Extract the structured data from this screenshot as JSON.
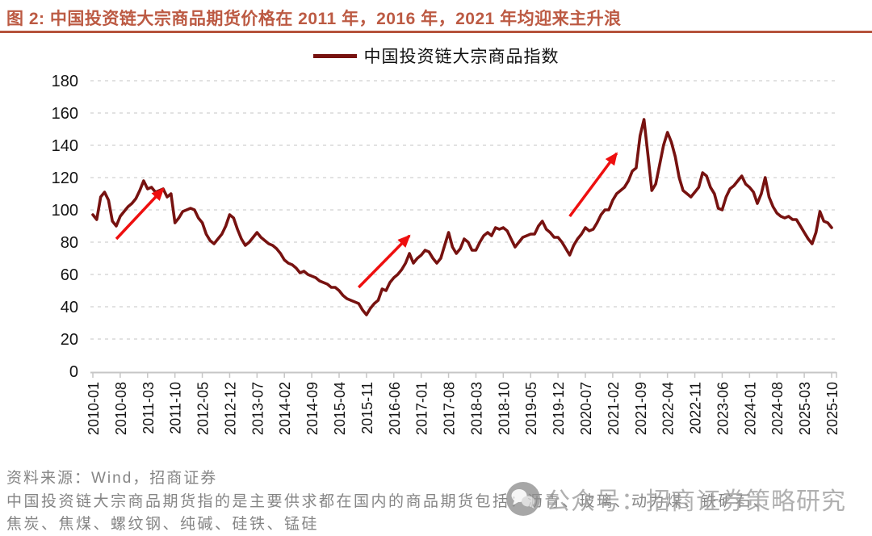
{
  "header": {
    "title": "图 2: 中国投资链大宗商品期货价格在 2011 年，2016 年，2021 年均迎来主升浪"
  },
  "legend": {
    "label": "中国投资链大宗商品指数"
  },
  "footer": {
    "source": "资料来源：Wind，招商证券",
    "note1": "中国投资链大宗商品期货指的是主要供求都在国内的商品期货包括：沥青、玻璃、动力煤、铁矿石、",
    "note2": "焦炭、焦煤、螺纹钢、纯碱、硅铁、锰硅"
  },
  "watermark": {
    "icon": "wechat-icon",
    "text": "公众号：招商证券策略研究"
  },
  "colors": {
    "accent_title": "#BC5A43",
    "accent_underline": "#B5523C",
    "series_line": "#771210",
    "arrow_red": "#EE0F0F",
    "gridline": "#D9D9D9",
    "axis": "#C6C6C6",
    "tick_text": "#141414",
    "gray_text": "#858585",
    "watermark_gray": "#9A9A9A"
  },
  "chart_data": {
    "type": "line",
    "title": "图 2: 中国投资链大宗商品期货价格在 2011 年，2016 年，2021 年均迎来主升浪",
    "xlabel": "",
    "ylabel": "",
    "start_month": "2010-01",
    "end_month": "2025-10",
    "frequency": "monthly",
    "ylim": [
      0,
      180
    ],
    "y_ticks": [
      0,
      20,
      40,
      60,
      80,
      100,
      120,
      140,
      160,
      180
    ],
    "grid": "horizontal-dashed",
    "legend_position": "top-center",
    "x_tick_labels": [
      "2010-01",
      "2010-08",
      "2011-03",
      "2011-10",
      "2012-05",
      "2012-12",
      "2013-07",
      "2014-02",
      "2014-09",
      "2015-04",
      "2015-11",
      "2016-06",
      "2017-01",
      "2017-08",
      "2018-03",
      "2018-10",
      "2019-05",
      "2019-12",
      "2020-07",
      "2021-02",
      "2021-09",
      "2022-04",
      "2022-11",
      "2023-06",
      "2024-01",
      "2024-08",
      "2025-03",
      "2025-10"
    ],
    "series": [
      {
        "name": "中国投资链大宗商品指数",
        "color": "#771210",
        "values": [
          97,
          94,
          108,
          111,
          106,
          93,
          90,
          96,
          99,
          102,
          104,
          107,
          112,
          118,
          113,
          114,
          111,
          112,
          113,
          108,
          110,
          92,
          95,
          99,
          100,
          101,
          100,
          95,
          92,
          85,
          81,
          79,
          82,
          85,
          90,
          97,
          95,
          88,
          82,
          78,
          80,
          83,
          86,
          83,
          81,
          79,
          78,
          76,
          73,
          69,
          67,
          66,
          64,
          61,
          62,
          60,
          59,
          58,
          56,
          55,
          54,
          52,
          52,
          50,
          47,
          45,
          44,
          43,
          42,
          38,
          35,
          39,
          42,
          44,
          51,
          50,
          55,
          58,
          60,
          63,
          67,
          73,
          67,
          70,
          72,
          75,
          74,
          70,
          67,
          70,
          78,
          86,
          77,
          73,
          76,
          82,
          80,
          75,
          75,
          80,
          84,
          86,
          84,
          89,
          88,
          89,
          87,
          82,
          77,
          80,
          83,
          84,
          85,
          85,
          90,
          93,
          88,
          86,
          83,
          83,
          80,
          76,
          72,
          78,
          82,
          85,
          89,
          87,
          88,
          92,
          97,
          100,
          100,
          106,
          110,
          112,
          114,
          118,
          124,
          126,
          146,
          156,
          134,
          112,
          116,
          128,
          140,
          148,
          142,
          133,
          120,
          112,
          110,
          108,
          111,
          114,
          123,
          121,
          114,
          110,
          101,
          100,
          108,
          113,
          115,
          118,
          121,
          116,
          114,
          111,
          104,
          110,
          120,
          108,
          102,
          98,
          96,
          95,
          96,
          94,
          94,
          90,
          86,
          82,
          79,
          86,
          99,
          93,
          92,
          89
        ]
      }
    ],
    "annotations": {
      "arrows": [
        {
          "from": {
            "month": "2010-07",
            "value": 82
          },
          "to": {
            "month": "2011-07",
            "value": 113
          }
        },
        {
          "from": {
            "month": "2015-09",
            "value": 52
          },
          "to": {
            "month": "2016-10",
            "value": 84
          }
        },
        {
          "from": {
            "month": "2020-03",
            "value": 96
          },
          "to": {
            "month": "2021-03",
            "value": 135
          }
        }
      ]
    }
  }
}
